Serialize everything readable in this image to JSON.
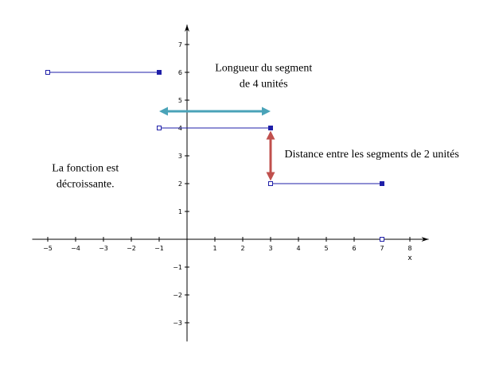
{
  "chart_data": {
    "type": "line",
    "xlabel": "x",
    "ylabel": "",
    "xlim": [
      -5.5,
      8.5
    ],
    "ylim": [
      -3.5,
      7.6
    ],
    "x_ticks": [
      -5,
      -4,
      -3,
      -2,
      -1,
      1,
      2,
      3,
      4,
      5,
      6,
      7,
      8
    ],
    "y_ticks": [
      -3,
      -2,
      -1,
      1,
      2,
      3,
      4,
      5,
      6,
      7
    ],
    "grid": false,
    "segments": [
      {
        "x": [
          -5,
          -1
        ],
        "y": [
          6,
          6
        ],
        "open_end": "left",
        "closed_end": "right"
      },
      {
        "x": [
          -1,
          3
        ],
        "y": [
          4,
          4
        ],
        "open_end": "left",
        "closed_end": "right"
      },
      {
        "x": [
          3,
          7
        ],
        "y": [
          2,
          2
        ],
        "open_end": "left",
        "closed_end": "right"
      }
    ],
    "extra_points": [
      {
        "x": 7,
        "y": 0,
        "style": "open"
      }
    ],
    "arrows": [
      {
        "name": "segment-length-arrow",
        "from": [
          -1,
          4.6
        ],
        "to": [
          3,
          4.6
        ],
        "color": "#4aa3b8",
        "double": true
      },
      {
        "name": "segment-distance-arrow",
        "from": [
          3,
          3.9
        ],
        "to": [
          3,
          2.1
        ],
        "color": "#c0504d",
        "double": true
      }
    ],
    "annotations": [
      {
        "name": "annotation-segment-length",
        "lines": [
          "Longueur du segment",
          "de 4 unités"
        ],
        "x": 2.75,
        "y": 6.05,
        "anchor": "middle"
      },
      {
        "name": "annotation-segment-distance",
        "lines": [
          "Distance entre les segments de 2 unités"
        ],
        "x": 3.5,
        "y": 2.95,
        "anchor": "start"
      },
      {
        "name": "annotation-decreasing-function",
        "lines": [
          "La fonction est",
          "décroissante."
        ],
        "x": -3.65,
        "y": 2.45,
        "anchor": "middle"
      }
    ],
    "colors": {
      "segment": "#1f1fa8",
      "axis": "#000000"
    }
  }
}
